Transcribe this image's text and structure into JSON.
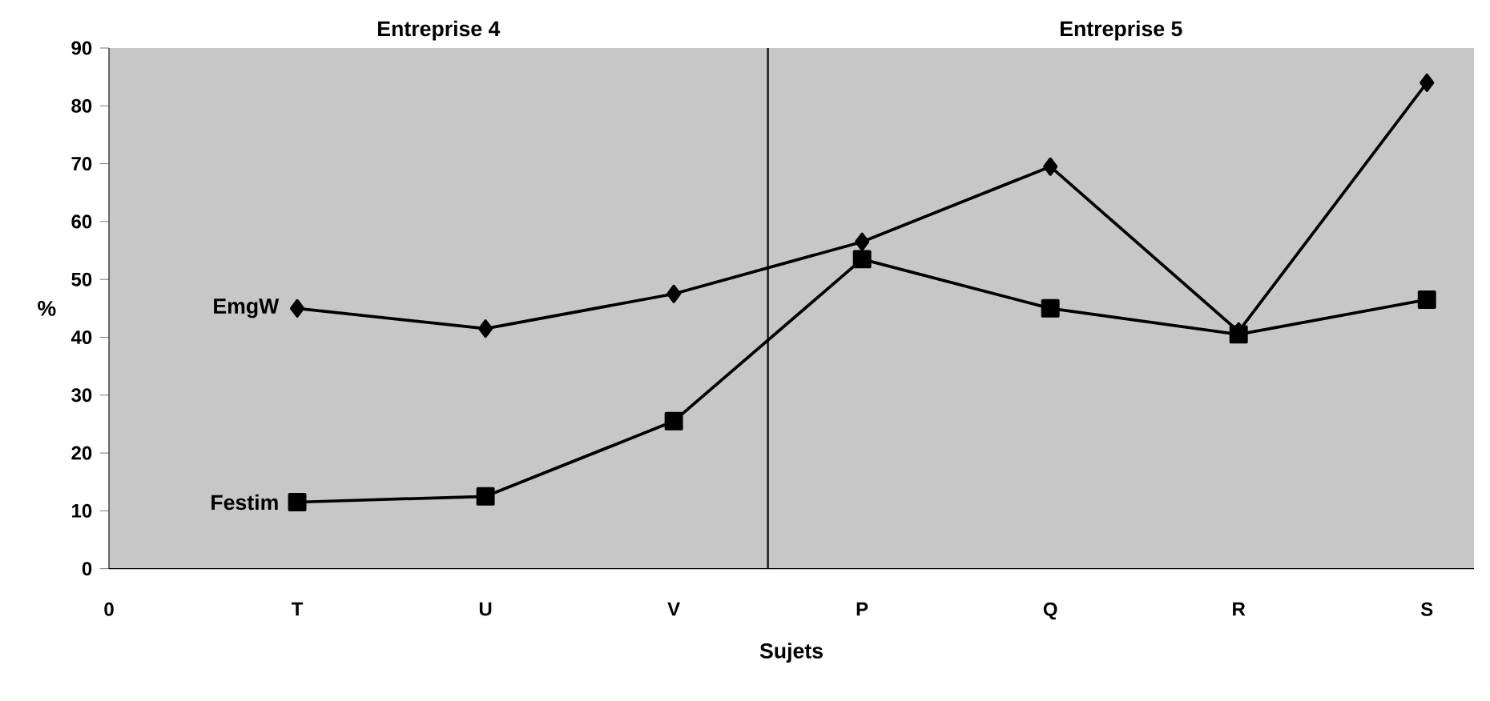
{
  "chart_data": {
    "type": "line",
    "xlabel": "Sujets",
    "ylabel": "%",
    "categories": [
      "0",
      "T",
      "U",
      "V",
      "P",
      "Q",
      "R",
      "S"
    ],
    "series": [
      {
        "name": "EmgW",
        "color": "#000000",
        "marker": "diamond",
        "values": [
          null,
          45,
          41.5,
          47.5,
          56.5,
          69.5,
          41,
          84
        ]
      },
      {
        "name": "Festim",
        "color": "#000000",
        "marker": "square",
        "values": [
          null,
          11.5,
          12.5,
          25.5,
          53.5,
          45,
          40.5,
          46.5
        ]
      }
    ],
    "ylim": [
      0,
      90
    ],
    "yticks": [
      0,
      10,
      20,
      30,
      40,
      50,
      60,
      70,
      80,
      90
    ],
    "annotations": [
      "Entreprise 4",
      "Entreprise 5"
    ],
    "legend": false,
    "grid": false
  }
}
